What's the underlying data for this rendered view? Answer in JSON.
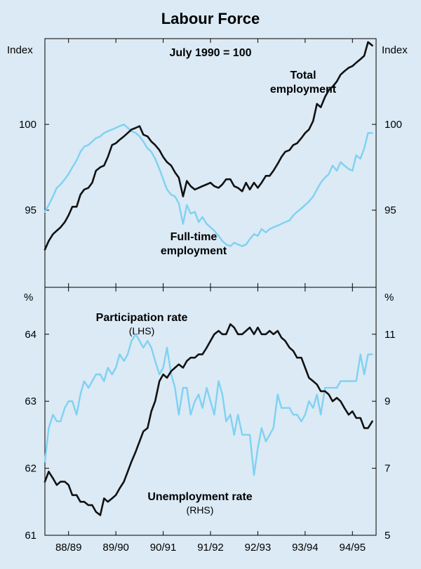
{
  "title": "Labour Force",
  "colors": {
    "background": "#dbeaf5",
    "dark_series": "#111111",
    "light_series": "#7fd1f2"
  },
  "chart_data": [
    {
      "type": "line",
      "title": "Labour Force",
      "subtitle": "July 1990 = 100",
      "ylabel_left": "Index",
      "ylabel_right": "Index",
      "ylim": [
        90.5,
        105
      ],
      "yticks": [
        95,
        100
      ],
      "x_range": [
        1988.5,
        1995.5
      ],
      "x_ticks": [
        "88/89",
        "89/90",
        "90/91",
        "91/92",
        "92/93",
        "93/94",
        "94/95"
      ],
      "annotations": [
        {
          "text": [
            "Total",
            "employment"
          ]
        },
        {
          "text": [
            "Full-time",
            "employment"
          ]
        }
      ],
      "series": [
        {
          "name": "Total employment",
          "axis": "left",
          "color": "#111111",
          "x": [
            1988.5,
            1988.58,
            1988.67,
            1988.75,
            1988.83,
            1988.92,
            1989.0,
            1989.08,
            1989.17,
            1989.25,
            1989.33,
            1989.42,
            1989.5,
            1989.58,
            1989.67,
            1989.75,
            1989.83,
            1989.92,
            1990.0,
            1990.08,
            1990.17,
            1990.25,
            1990.33,
            1990.42,
            1990.5,
            1990.58,
            1990.67,
            1990.75,
            1990.83,
            1990.92,
            1991.0,
            1991.08,
            1991.17,
            1991.25,
            1991.33,
            1991.42,
            1991.5,
            1991.58,
            1991.67,
            1991.75,
            1991.83,
            1991.92,
            1992.0,
            1992.08,
            1992.17,
            1992.25,
            1992.33,
            1992.42,
            1992.5,
            1992.58,
            1992.67,
            1992.75,
            1992.83,
            1992.92,
            1993.0,
            1993.08,
            1993.17,
            1993.25,
            1993.33,
            1993.42,
            1993.5,
            1993.58,
            1993.67,
            1993.75,
            1993.83,
            1993.92,
            1994.0,
            1994.08,
            1994.17,
            1994.25,
            1994.33,
            1994.42,
            1994.5,
            1994.58,
            1994.67,
            1994.75,
            1994.83,
            1994.92,
            1995.0,
            1995.08,
            1995.17,
            1995.25,
            1995.33,
            1995.42
          ],
          "values": [
            92.7,
            93.2,
            93.6,
            93.8,
            94.0,
            94.3,
            94.7,
            95.2,
            95.2,
            95.9,
            96.2,
            96.3,
            96.6,
            97.3,
            97.5,
            97.6,
            98.1,
            98.8,
            98.9,
            99.1,
            99.3,
            99.5,
            99.7,
            99.8,
            99.9,
            99.4,
            99.3,
            99.0,
            98.8,
            98.5,
            98.1,
            97.8,
            97.6,
            97.2,
            96.9,
            95.8,
            96.7,
            96.4,
            96.2,
            96.3,
            96.4,
            96.5,
            96.6,
            96.4,
            96.3,
            96.5,
            96.8,
            96.8,
            96.4,
            96.3,
            96.1,
            96.6,
            96.2,
            96.6,
            96.3,
            96.6,
            97.0,
            97.0,
            97.3,
            97.7,
            98.1,
            98.4,
            98.5,
            98.8,
            98.9,
            99.2,
            99.5,
            99.7,
            100.2,
            101.2,
            101.0,
            101.6,
            102.0,
            102.2,
            102.5,
            102.9,
            103.1,
            103.3,
            103.4,
            103.6,
            103.8,
            104.0,
            104.8,
            104.6
          ]
        },
        {
          "name": "Full-time employment",
          "axis": "left",
          "color": "#7fd1f2",
          "x": [
            1988.5,
            1988.58,
            1988.67,
            1988.75,
            1988.83,
            1988.92,
            1989.0,
            1989.08,
            1989.17,
            1989.25,
            1989.33,
            1989.42,
            1989.5,
            1989.58,
            1989.67,
            1989.75,
            1989.83,
            1989.92,
            1990.0,
            1990.08,
            1990.17,
            1990.25,
            1990.33,
            1990.42,
            1990.5,
            1990.58,
            1990.67,
            1990.75,
            1990.83,
            1990.92,
            1991.0,
            1991.08,
            1991.17,
            1991.25,
            1991.33,
            1991.42,
            1991.5,
            1991.58,
            1991.67,
            1991.75,
            1991.83,
            1991.92,
            1992.0,
            1992.08,
            1992.17,
            1992.25,
            1992.33,
            1992.42,
            1992.5,
            1992.58,
            1992.67,
            1992.75,
            1992.83,
            1992.92,
            1993.0,
            1993.08,
            1993.17,
            1993.25,
            1993.33,
            1993.42,
            1993.5,
            1993.58,
            1993.67,
            1993.75,
            1993.83,
            1993.92,
            1994.0,
            1994.08,
            1994.17,
            1994.25,
            1994.33,
            1994.42,
            1994.5,
            1994.58,
            1994.67,
            1994.75,
            1994.83,
            1994.92,
            1995.0,
            1995.08,
            1995.17,
            1995.25,
            1995.33,
            1995.42
          ],
          "values": [
            94.9,
            95.3,
            95.8,
            96.3,
            96.5,
            96.8,
            97.1,
            97.5,
            97.9,
            98.4,
            98.7,
            98.8,
            99.0,
            99.2,
            99.3,
            99.5,
            99.6,
            99.7,
            99.8,
            99.9,
            100.0,
            99.8,
            99.6,
            99.5,
            99.3,
            99.0,
            98.6,
            98.4,
            98.0,
            97.4,
            96.8,
            96.2,
            95.9,
            95.8,
            95.4,
            94.2,
            95.3,
            94.8,
            94.9,
            94.3,
            94.6,
            94.2,
            94.0,
            93.8,
            93.5,
            93.2,
            93.0,
            92.9,
            93.1,
            93.0,
            92.9,
            93.0,
            93.3,
            93.6,
            93.5,
            93.9,
            93.7,
            93.9,
            94.0,
            94.1,
            94.2,
            94.3,
            94.4,
            94.7,
            94.9,
            95.1,
            95.3,
            95.5,
            95.8,
            96.2,
            96.6,
            96.9,
            97.1,
            97.6,
            97.3,
            97.8,
            97.6,
            97.4,
            97.3,
            98.2,
            98.0,
            98.6,
            99.5,
            99.5
          ]
        }
      ]
    },
    {
      "type": "line",
      "ylabel_left": "%",
      "ylabel_right": "%",
      "ylim_left": [
        61,
        64.7
      ],
      "ylim_right": [
        5,
        12.4
      ],
      "yticks_left": [
        61,
        62,
        63,
        64
      ],
      "yticks_right": [
        5,
        7,
        9,
        11
      ],
      "x_range": [
        1988.5,
        1995.5
      ],
      "x_ticks": [
        "88/89",
        "89/90",
        "90/91",
        "91/92",
        "92/93",
        "93/94",
        "94/95"
      ],
      "annotations": [
        {
          "text": "Participation rate",
          "sub": "(LHS)"
        },
        {
          "text": "Unemployment rate",
          "sub": "(RHS)"
        }
      ],
      "series": [
        {
          "name": "Participation rate",
          "axis": "left",
          "color": "#7fd1f2",
          "x": [
            1988.5,
            1988.58,
            1988.67,
            1988.75,
            1988.83,
            1988.92,
            1989.0,
            1989.08,
            1989.17,
            1989.25,
            1989.33,
            1989.42,
            1989.5,
            1989.58,
            1989.67,
            1989.75,
            1989.83,
            1989.92,
            1990.0,
            1990.08,
            1990.17,
            1990.25,
            1990.33,
            1990.42,
            1990.5,
            1990.58,
            1990.67,
            1990.75,
            1990.83,
            1990.92,
            1991.0,
            1991.08,
            1991.17,
            1991.25,
            1991.33,
            1991.42,
            1991.5,
            1991.58,
            1991.67,
            1991.75,
            1991.83,
            1991.92,
            1992.0,
            1992.08,
            1992.17,
            1992.25,
            1992.33,
            1992.42,
            1992.5,
            1992.58,
            1992.67,
            1992.75,
            1992.83,
            1992.92,
            1993.0,
            1993.08,
            1993.17,
            1993.25,
            1993.33,
            1993.42,
            1993.5,
            1993.58,
            1993.67,
            1993.75,
            1993.83,
            1993.92,
            1994.0,
            1994.08,
            1994.17,
            1994.25,
            1994.33,
            1994.42,
            1994.5,
            1994.58,
            1994.67,
            1994.75,
            1994.83,
            1994.92,
            1995.0,
            1995.08,
            1995.17,
            1995.25,
            1995.33,
            1995.42
          ],
          "values": [
            62.1,
            62.6,
            62.8,
            62.7,
            62.7,
            62.9,
            63.0,
            63.0,
            62.8,
            63.1,
            63.3,
            63.2,
            63.3,
            63.4,
            63.4,
            63.3,
            63.5,
            63.4,
            63.5,
            63.7,
            63.6,
            63.7,
            63.9,
            64.0,
            63.9,
            63.8,
            63.9,
            63.8,
            63.6,
            63.4,
            63.5,
            63.8,
            63.4,
            63.2,
            62.8,
            63.2,
            63.2,
            62.8,
            63.0,
            63.1,
            62.9,
            63.2,
            63.0,
            62.8,
            63.3,
            63.1,
            62.7,
            62.8,
            62.5,
            62.8,
            62.5,
            62.5,
            62.5,
            61.9,
            62.3,
            62.6,
            62.4,
            62.5,
            62.6,
            63.1,
            62.9,
            62.9,
            62.9,
            62.8,
            62.8,
            62.7,
            62.8,
            63.0,
            62.9,
            63.1,
            62.8,
            63.2,
            63.2,
            63.2,
            63.2,
            63.3,
            63.3,
            63.3,
            63.3,
            63.3,
            63.7,
            63.4,
            63.7,
            63.7
          ]
        },
        {
          "name": "Unemployment rate",
          "axis": "right",
          "color": "#111111",
          "x": [
            1988.5,
            1988.58,
            1988.67,
            1988.75,
            1988.83,
            1988.92,
            1989.0,
            1989.08,
            1989.17,
            1989.25,
            1989.33,
            1989.42,
            1989.5,
            1989.58,
            1989.67,
            1989.75,
            1989.83,
            1989.92,
            1990.0,
            1990.08,
            1990.17,
            1990.25,
            1990.33,
            1990.42,
            1990.5,
            1990.58,
            1990.67,
            1990.75,
            1990.83,
            1990.92,
            1991.0,
            1991.08,
            1991.17,
            1991.25,
            1991.33,
            1991.42,
            1991.5,
            1991.58,
            1991.67,
            1991.75,
            1991.83,
            1991.92,
            1992.0,
            1992.08,
            1992.17,
            1992.25,
            1992.33,
            1992.42,
            1992.5,
            1992.58,
            1992.67,
            1992.75,
            1992.83,
            1992.92,
            1993.0,
            1993.08,
            1993.17,
            1993.25,
            1993.33,
            1993.42,
            1993.5,
            1993.58,
            1993.67,
            1993.75,
            1993.83,
            1993.92,
            1994.0,
            1994.08,
            1994.17,
            1994.25,
            1994.33,
            1994.42,
            1994.5,
            1994.58,
            1994.67,
            1994.75,
            1994.83,
            1994.92,
            1995.0,
            1995.08,
            1995.17,
            1995.25,
            1995.33,
            1995.42
          ],
          "values": [
            6.6,
            6.9,
            6.7,
            6.5,
            6.6,
            6.6,
            6.5,
            6.2,
            6.2,
            6.0,
            6.0,
            5.9,
            5.9,
            5.7,
            5.6,
            6.1,
            6.0,
            6.1,
            6.2,
            6.4,
            6.6,
            6.9,
            7.2,
            7.5,
            7.8,
            8.1,
            8.2,
            8.7,
            9.0,
            9.6,
            9.8,
            9.7,
            9.9,
            10.0,
            10.1,
            10.0,
            10.2,
            10.3,
            10.3,
            10.4,
            10.4,
            10.6,
            10.8,
            11.0,
            11.1,
            11.0,
            11.0,
            11.3,
            11.2,
            11.0,
            11.0,
            11.1,
            11.2,
            11.0,
            11.2,
            11.0,
            11.0,
            11.1,
            11.0,
            11.1,
            10.9,
            10.8,
            10.6,
            10.5,
            10.3,
            10.3,
            10.0,
            9.7,
            9.6,
            9.5,
            9.3,
            9.3,
            9.2,
            9.0,
            9.1,
            9.0,
            8.8,
            8.6,
            8.7,
            8.5,
            8.5,
            8.2,
            8.2,
            8.4
          ]
        }
      ]
    }
  ]
}
